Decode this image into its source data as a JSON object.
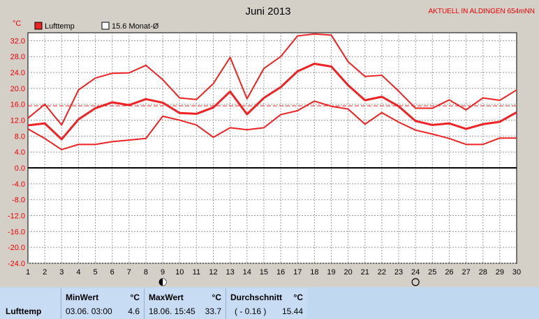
{
  "chart_data": {
    "type": "line",
    "title": "Juni 2013",
    "location": "AKTUELL IN ALDINGEN 654mNN",
    "ylabel": "°C",
    "ylim": [
      -24,
      34
    ],
    "yticks": [
      "32.0",
      "28.0",
      "24.0",
      "20.0",
      "16.0",
      "12.0",
      "8.0",
      "4.0",
      "0.0",
      "-4.0",
      "-8.0",
      "-12.0",
      "-16.0",
      "-20.0",
      "-24.0"
    ],
    "x": [
      1,
      2,
      3,
      4,
      5,
      6,
      7,
      8,
      9,
      10,
      11,
      12,
      13,
      14,
      15,
      16,
      17,
      18,
      19,
      20,
      21,
      22,
      23,
      24,
      25,
      26,
      27,
      28,
      29,
      30
    ],
    "xticks": [
      "1",
      "2",
      "3",
      "4",
      "5",
      "6",
      "7",
      "8",
      "9",
      "10",
      "11",
      "12",
      "13",
      "14",
      "15",
      "16",
      "17",
      "18",
      "19",
      "20",
      "21",
      "22",
      "23",
      "24",
      "25",
      "26",
      "27",
      "28",
      "29",
      "30"
    ],
    "grid": true,
    "legend": [
      {
        "label": "Lufttemp",
        "color": "#ff0000"
      },
      {
        "label": "15.6 Monat-Ø",
        "color": "#ffffff"
      }
    ],
    "series": [
      {
        "role": "max",
        "values": [
          12.5,
          16.0,
          10.8,
          19.6,
          22.6,
          23.8,
          23.9,
          25.8,
          22.2,
          17.6,
          17.2,
          21.2,
          27.8,
          17.4,
          25.0,
          28.0,
          33.2,
          33.7,
          33.4,
          26.7,
          23.0,
          23.3,
          19.3,
          15.0,
          15.0,
          17.1,
          14.6,
          17.6,
          17.0,
          19.6
        ]
      },
      {
        "role": "avg",
        "values": [
          10.7,
          11.2,
          7.2,
          12.2,
          15.0,
          16.5,
          15.8,
          17.3,
          16.4,
          13.8,
          13.6,
          15.2,
          19.2,
          13.5,
          17.6,
          20.3,
          24.3,
          26.2,
          25.5,
          20.8,
          17.0,
          17.9,
          15.5,
          11.8,
          10.8,
          11.2,
          9.8,
          11.0,
          11.6,
          14.0
        ]
      },
      {
        "role": "min",
        "values": [
          9.8,
          7.4,
          4.6,
          5.9,
          5.9,
          6.6,
          7.0,
          7.4,
          13.0,
          12.0,
          10.8,
          7.7,
          10.1,
          9.6,
          10.1,
          13.4,
          14.4,
          16.8,
          15.5,
          14.8,
          11.0,
          13.9,
          11.5,
          9.5,
          8.5,
          7.4,
          5.9,
          5.9,
          7.5,
          7.5
        ]
      }
    ],
    "reference_line": {
      "value": 15.6,
      "style": "dashed"
    },
    "moon_phases": [
      {
        "day": 9,
        "phase": "waxing"
      },
      {
        "day": 24,
        "phase": "full"
      }
    ]
  },
  "stats": {
    "row_label": "Lufttemp",
    "min": {
      "header": "MinWert",
      "unit": "°C",
      "time": "03.06.  03:00",
      "value": "4.6"
    },
    "max": {
      "header": "MaxWert",
      "unit": "°C",
      "time": "18.06.  15:45",
      "value": "33.7"
    },
    "avg": {
      "header": "Durchschnitt",
      "unit": "°C",
      "note": "( - 0.16 )",
      "value": "15.44"
    }
  },
  "colors": {
    "line": "#ee2222",
    "plot_bg": "#ffffff",
    "window_bg": "#d4d0c8"
  }
}
